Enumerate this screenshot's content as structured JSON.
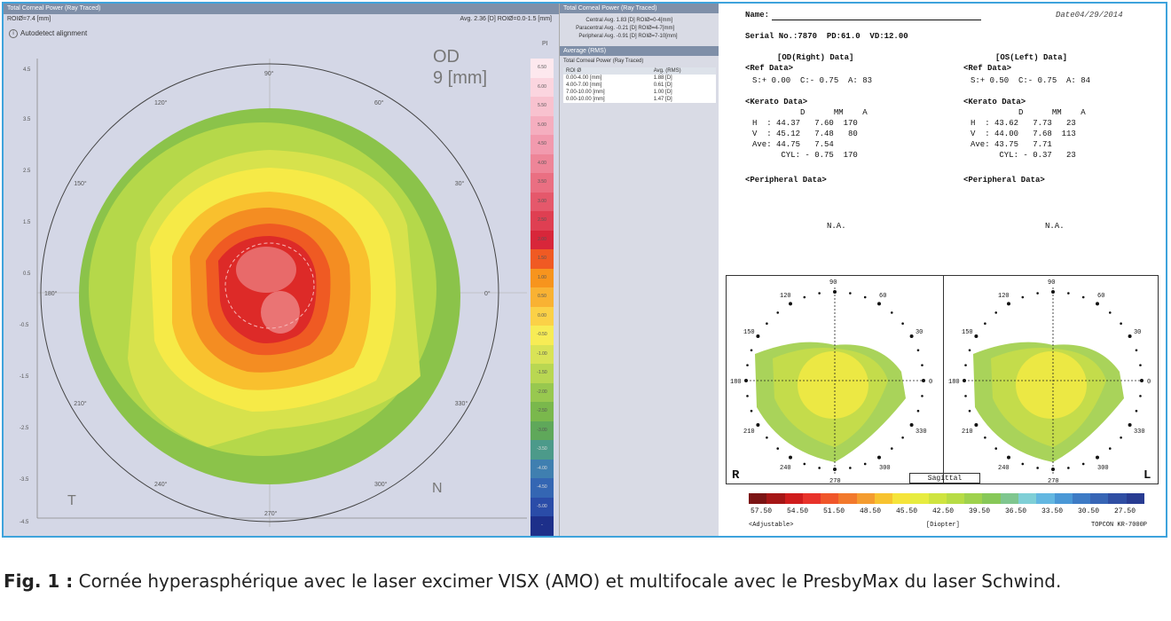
{
  "left_panel": {
    "title": "Total Corneal Power (Ray Traced)",
    "roi": "ROIØ=7.4 [mm]",
    "avg": "Avg. 2.36 [D]  ROIØ=0.0-1.5 [mm]",
    "alignment": "Autodetect alignment",
    "eye": "OD",
    "size": "9 [mm]",
    "temporal": "T",
    "nasal": "N",
    "pi_label": "PI",
    "angle_labels": [
      "90°",
      "60°",
      "30°",
      "0°",
      "330°",
      "300°",
      "270°",
      "240°",
      "210°",
      "180°",
      "150°",
      "120°"
    ],
    "colorbar_values": [
      "6.50",
      "6.00",
      "5.50",
      "5.00",
      "4.50",
      "4.00",
      "3.50",
      "3.00",
      "2.50",
      "2.00",
      "1.50",
      "1.00",
      "0.50",
      "0.00",
      "-0.50",
      "-1.00",
      "-1.50",
      "-2.00",
      "-2.50",
      "-3.00",
      "-3.50",
      "-4.00",
      "-4.50",
      "-5.00",
      "-"
    ],
    "colorbar_colors": [
      "#fde8ee",
      "#fbd5df",
      "#f8c2cf",
      "#f5aebf",
      "#f29aae",
      "#ee8598",
      "#ea6f82",
      "#e5586b",
      "#df3f52",
      "#d8263a",
      "#f05a23",
      "#f7941d",
      "#f9b233",
      "#fbd147",
      "#f7ec55",
      "#d9e356",
      "#b9d752",
      "#98c84f",
      "#7ab84c",
      "#5fa85a",
      "#4c9a8a",
      "#3f7fb0",
      "#3466b3",
      "#2a4ca8",
      "#1d2f8a"
    ]
  },
  "middle_panel": {
    "title": "Total Corneal Power (Ray Traced)",
    "rows": [
      {
        "k": "Central Avg.",
        "v": "1.83 [D] ROIØ=0-4[mm]"
      },
      {
        "k": "Paracentral Avg.",
        "v": "-0.21 [D] ROIØ=4-7[mm]"
      },
      {
        "k": "Peripheral Avg.",
        "v": "-0.91 [D] ROIØ=7-10[mm]"
      }
    ],
    "section": "Average (RMS)",
    "sub_title": "Total Corneal Power (Ray Traced)",
    "table_head": [
      "ROI Ø",
      "Avg. (RMS)"
    ],
    "table": [
      [
        "0.00-4.00 [mm]",
        "1.88 [D]"
      ],
      [
        "4.00-7.00 [mm]",
        "0.61 [D]"
      ],
      [
        "7.00-10.00 [mm]",
        "1.00 [D]"
      ],
      [
        "0.00-10.00 [mm]",
        "1.47 [D]"
      ]
    ]
  },
  "report": {
    "name_label": "Name:",
    "date": "Date04/29/2014",
    "serial": "Serial No.:7870  PD:61.0  VD:12.00",
    "od_title": "[OD(Right) Data]",
    "os_title": "[OS(Left) Data]",
    "ref_title": "<Ref Data>",
    "od_ref": "S:+ 0.00  C:- 0.75  A: 83",
    "os_ref": "S:+ 0.50  C:- 0.75  A: 84",
    "kerato_title": "<Kerato Data>",
    "kerato_head": "          D      MM    A",
    "od_kerato": [
      "H  : 44.37   7.60  170",
      "V  : 45.12   7.48   80",
      "Ave: 44.75   7.54",
      "      CYL: - 0.75  170"
    ],
    "os_kerato": [
      "H  : 43.62   7.73   23",
      "V  : 44.00   7.68  113",
      "Ave: 43.75   7.71",
      "      CYL: - 0.37   23"
    ],
    "peripheral_title": "<Peripheral Data>",
    "na": "N.A.",
    "map_angles": [
      "90",
      "60",
      "30",
      "0",
      "330",
      "300",
      "270",
      "240",
      "210",
      "180",
      "150",
      "120"
    ],
    "right_letter": "R",
    "left_letter": "L",
    "sagittal": "Sagittal",
    "ramp_colors": [
      "#7b1414",
      "#a51616",
      "#cf1c1c",
      "#e8322a",
      "#f0562a",
      "#f2792c",
      "#f49c2f",
      "#f7c32f",
      "#f5e43a",
      "#e7ec3f",
      "#cfe43f",
      "#b7dc45",
      "#9fd24d",
      "#87c858",
      "#7fc68f",
      "#7fcfd6",
      "#63b7e1",
      "#4a98d6",
      "#3d7bc5",
      "#3765b5",
      "#2f4ea3",
      "#283c92"
    ],
    "ramp_labels": [
      "57.50",
      "54.50",
      "51.50",
      "48.50",
      "45.50",
      "42.50",
      "39.50",
      "36.50",
      "33.50",
      "30.50",
      "27.50"
    ],
    "adjustable": "<Adjustable>",
    "diopter": "[Diopter]",
    "device": "TOPCON KR-7000P"
  },
  "caption": {
    "label": "Fig. 1 :",
    "text": "Cornée hyperasphérique avec le laser excimer VISX (AMO) et multifocale avec le PresbyMax du laser Schwind."
  }
}
